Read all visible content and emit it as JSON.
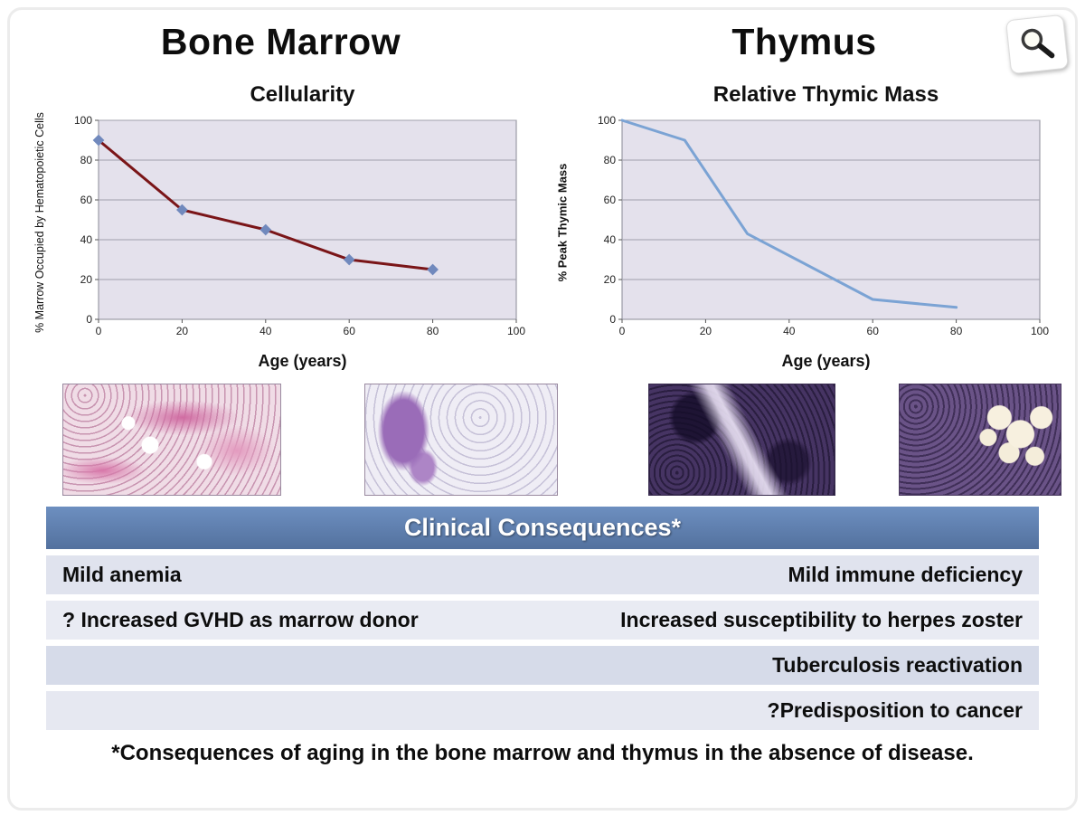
{
  "header": {
    "left_title": "Bone Marrow",
    "right_title": "Thymus"
  },
  "icons": {
    "magnifier": "magnifier-icon"
  },
  "chart_data": [
    {
      "type": "line",
      "title": "Cellularity",
      "xlabel": "Age (years)",
      "ylabel": "% Marrow Occupied by Hematopoietic Cells",
      "x": [
        0,
        20,
        40,
        60,
        80
      ],
      "values": [
        90,
        55,
        45,
        30,
        25
      ],
      "xlim": [
        0,
        100
      ],
      "ylim": [
        0,
        100
      ],
      "xticks": [
        0,
        20,
        40,
        60,
        80,
        100
      ],
      "yticks": [
        0,
        20,
        40,
        60,
        80,
        100
      ],
      "line_color": "#7a1518",
      "line_width": 3,
      "marker": "diamond",
      "marker_color": "#7189bd",
      "plot_bg": "#e4e1ec",
      "grid": "horizontal",
      "legend": "none"
    },
    {
      "type": "line",
      "title": "Relative Thymic Mass",
      "xlabel": "Age (years)",
      "ylabel": "% Peak Thymic Mass",
      "x": [
        0,
        15,
        30,
        60,
        80
      ],
      "values": [
        100,
        90,
        43,
        10,
        6
      ],
      "xlim": [
        0,
        100
      ],
      "ylim": [
        0,
        100
      ],
      "xticks": [
        0,
        20,
        40,
        60,
        80,
        100
      ],
      "yticks": [
        0,
        20,
        40,
        60,
        80,
        100
      ],
      "line_color": "#7ba3d4",
      "line_width": 3,
      "marker": "none",
      "marker_color": "",
      "plot_bg": "#e4e1ec",
      "grid": "horizontal",
      "legend": "none"
    }
  ],
  "histology": {
    "images": [
      {
        "name": "bone-marrow-young-histology"
      },
      {
        "name": "bone-marrow-aged-histology"
      },
      {
        "name": "thymus-young-histology"
      },
      {
        "name": "thymus-aged-histology"
      }
    ]
  },
  "consequences": {
    "header": "Clinical Consequences*",
    "rows": [
      {
        "left": "Mild anemia",
        "right": "Mild immune deficiency"
      },
      {
        "left": "? Increased GVHD as marrow donor",
        "right": "Increased susceptibility to herpes zoster"
      },
      {
        "left": "",
        "right": "Tuberculosis reactivation"
      },
      {
        "left": "",
        "right": "?Predisposition to cancer"
      }
    ]
  },
  "footer": {
    "note": "*Consequences of aging in the bone marrow and thymus in the absence of disease."
  }
}
